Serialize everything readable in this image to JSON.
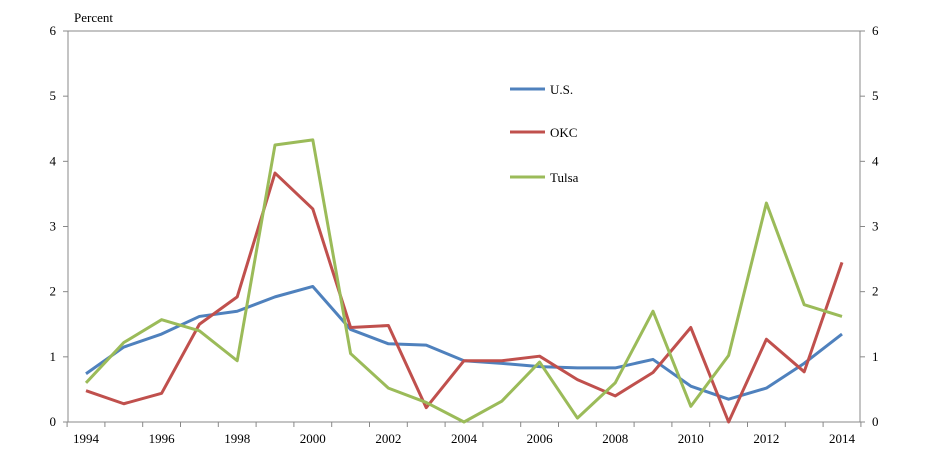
{
  "chart_data": {
    "type": "line",
    "ylabel": "Percent",
    "ylim": [
      0,
      6
    ],
    "yticks": [
      0,
      1,
      2,
      3,
      4,
      5,
      6
    ],
    "x": [
      1994,
      1995,
      1996,
      1997,
      1998,
      1999,
      2000,
      2001,
      2002,
      2003,
      2004,
      2005,
      2006,
      2007,
      2008,
      2009,
      2010,
      2011,
      2012,
      2013,
      2014
    ],
    "xtick_labels": [
      "1994",
      "1996",
      "1998",
      "2000",
      "2002",
      "2004",
      "2006",
      "2008",
      "2010",
      "2012",
      "2014"
    ],
    "legend_placement": "top-center",
    "series": [
      {
        "name": "U.S.",
        "color": "#4F81BD",
        "values": [
          0.74,
          1.15,
          1.35,
          1.62,
          1.7,
          1.92,
          2.08,
          1.42,
          1.2,
          1.18,
          0.94,
          0.9,
          0.85,
          0.83,
          0.83,
          0.96,
          0.55,
          0.35,
          0.52,
          0.9,
          1.35
        ]
      },
      {
        "name": "OKC",
        "color": "#C0504D",
        "values": [
          0.48,
          0.28,
          0.44,
          1.5,
          1.92,
          3.82,
          3.27,
          1.45,
          1.48,
          0.22,
          0.94,
          0.94,
          1.01,
          0.65,
          0.4,
          0.76,
          1.45,
          0.0,
          1.27,
          0.77,
          2.45
        ]
      },
      {
        "name": "Tulsa",
        "color": "#9BBB59",
        "values": [
          0.6,
          1.22,
          1.57,
          1.4,
          0.94,
          4.25,
          4.33,
          1.05,
          0.52,
          0.3,
          0.0,
          0.32,
          0.92,
          0.06,
          0.6,
          1.7,
          0.24,
          1.02,
          3.36,
          1.8,
          1.62
        ]
      }
    ]
  }
}
